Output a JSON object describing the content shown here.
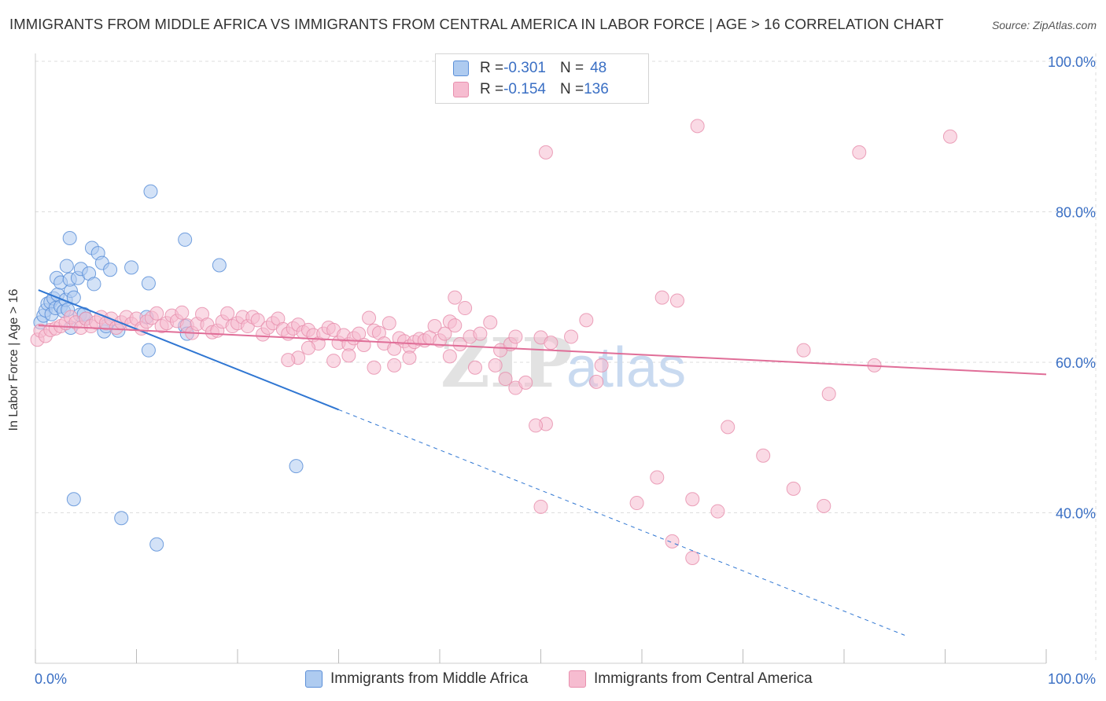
{
  "header": {
    "title": "IMMIGRANTS FROM MIDDLE AFRICA VS IMMIGRANTS FROM CENTRAL AMERICA IN LABOR FORCE | AGE > 16 CORRELATION CHART",
    "source": "Source: ZipAtlas.com"
  },
  "watermark": {
    "zip": "ZIP",
    "atlas": "atlas"
  },
  "legend": {
    "rows": [
      {
        "r_label": "R = ",
        "r_value": "-0.301",
        "n_label": "N = ",
        "n_value": "48"
      },
      {
        "r_label": "R = ",
        "r_value": "-0.154",
        "n_label": "N = ",
        "n_value": "136"
      }
    ]
  },
  "colors": {
    "blue_fill": "#aecbf0",
    "blue_stroke": "#5b8fd8",
    "blue_line": "#2f76d2",
    "pink_fill": "#f6bcd0",
    "pink_stroke": "#e890ae",
    "pink_line": "#e06e98",
    "grid": "#dddddd",
    "tick_label": "#3a6fc4"
  },
  "chart_data": {
    "type": "scatter",
    "title": "IMMIGRANTS FROM MIDDLE AFRICA VS IMMIGRANTS FROM CENTRAL AMERICA IN LABOR FORCE | AGE > 16 CORRELATION CHART",
    "xlabel": "",
    "ylabel": "In Labor Force | Age > 16",
    "xlim": [
      0,
      100
    ],
    "ylim": [
      20,
      100
    ],
    "x_tick_labels": [
      "0.0%",
      "100.0%"
    ],
    "y_ticks": [
      40,
      60,
      80,
      100
    ],
    "y_tick_labels": [
      "40.0%",
      "60.0%",
      "80.0%",
      "100.0%"
    ],
    "legend_position": "bottom",
    "series": [
      {
        "name": "Immigrants from Middle Africa",
        "r": -0.301,
        "n": 48,
        "trend": {
          "x0": 0.3,
          "y0": 69.6,
          "x1": 30,
          "y1": 53.7,
          "dash_to_x": 86
        },
        "points": [
          [
            0.5,
            65.3
          ],
          [
            0.8,
            66.2
          ],
          [
            1.0,
            66.9
          ],
          [
            1.2,
            67.8
          ],
          [
            1.5,
            68.0
          ],
          [
            1.6,
            66.4
          ],
          [
            1.8,
            68.5
          ],
          [
            2.0,
            67.2
          ],
          [
            2.2,
            69.0
          ],
          [
            2.5,
            67.4
          ],
          [
            2.8,
            66.8
          ],
          [
            3.0,
            68.3
          ],
          [
            3.2,
            67.0
          ],
          [
            3.5,
            69.5
          ],
          [
            2.1,
            71.2
          ],
          [
            2.5,
            70.6
          ],
          [
            3.4,
            71.0
          ],
          [
            3.8,
            68.6
          ],
          [
            4.2,
            71.2
          ],
          [
            4.4,
            66.3
          ],
          [
            4.8,
            66.4
          ],
          [
            5.0,
            65.8
          ],
          [
            6.8,
            64.1
          ],
          [
            8.2,
            64.2
          ],
          [
            3.5,
            64.6
          ],
          [
            3.1,
            72.8
          ],
          [
            3.4,
            76.5
          ],
          [
            4.5,
            72.4
          ],
          [
            5.3,
            71.8
          ],
          [
            5.6,
            75.2
          ],
          [
            5.8,
            70.4
          ],
          [
            6.2,
            74.5
          ],
          [
            6.6,
            73.2
          ],
          [
            7.4,
            72.3
          ],
          [
            9.5,
            72.6
          ],
          [
            11.2,
            70.5
          ],
          [
            14.8,
            76.3
          ],
          [
            18.2,
            72.9
          ],
          [
            11.2,
            61.6
          ],
          [
            11.0,
            66.0
          ],
          [
            14.8,
            64.8
          ],
          [
            15.0,
            63.8
          ],
          [
            11.4,
            82.7
          ],
          [
            25.8,
            46.2
          ],
          [
            3.8,
            41.8
          ],
          [
            8.5,
            39.3
          ],
          [
            12.0,
            35.8
          ],
          [
            7.0,
            64.8
          ]
        ]
      },
      {
        "name": "Immigrants from Central America",
        "r": -0.154,
        "n": 136,
        "trend": {
          "x0": 0.3,
          "y0": 64.9,
          "x1": 100,
          "y1": 58.4
        },
        "points": [
          [
            0.2,
            63.0
          ],
          [
            0.5,
            64.2
          ],
          [
            1.0,
            63.5
          ],
          [
            1.5,
            64.3
          ],
          [
            2.0,
            64.5
          ],
          [
            2.5,
            64.8
          ],
          [
            3.0,
            65.2
          ],
          [
            3.5,
            66.0
          ],
          [
            4.0,
            65.3
          ],
          [
            4.5,
            64.6
          ],
          [
            5.0,
            65.8
          ],
          [
            5.5,
            64.8
          ],
          [
            6.0,
            65.3
          ],
          [
            6.5,
            66.0
          ],
          [
            7.0,
            65.2
          ],
          [
            7.5,
            65.8
          ],
          [
            8.0,
            64.6
          ],
          [
            8.5,
            65.3
          ],
          [
            9.0,
            66.0
          ],
          [
            9.5,
            65.1
          ],
          [
            10.0,
            65.8
          ],
          [
            10.5,
            64.5
          ],
          [
            11.0,
            65.4
          ],
          [
            11.5,
            65.9
          ],
          [
            12.0,
            66.5
          ],
          [
            12.5,
            64.8
          ],
          [
            13.0,
            65.2
          ],
          [
            13.5,
            66.2
          ],
          [
            14.0,
            65.5
          ],
          [
            14.5,
            66.6
          ],
          [
            15.0,
            64.9
          ],
          [
            15.5,
            63.9
          ],
          [
            16.0,
            65.1
          ],
          [
            16.5,
            66.4
          ],
          [
            17.0,
            65.0
          ],
          [
            17.5,
            64.0
          ],
          [
            18.0,
            64.2
          ],
          [
            18.5,
            65.4
          ],
          [
            19.0,
            66.5
          ],
          [
            19.5,
            64.8
          ],
          [
            20.0,
            65.2
          ],
          [
            20.5,
            66.0
          ],
          [
            21.0,
            64.8
          ],
          [
            21.5,
            66.0
          ],
          [
            22.0,
            65.6
          ],
          [
            22.5,
            63.7
          ],
          [
            23.0,
            64.6
          ],
          [
            23.5,
            65.2
          ],
          [
            24.0,
            65.8
          ],
          [
            24.5,
            64.4
          ],
          [
            25.0,
            63.8
          ],
          [
            25.5,
            64.5
          ],
          [
            26.0,
            65.0
          ],
          [
            26.5,
            64.0
          ],
          [
            27.0,
            64.3
          ],
          [
            27.5,
            63.6
          ],
          [
            28.0,
            62.5
          ],
          [
            28.5,
            63.8
          ],
          [
            29.0,
            64.6
          ],
          [
            29.5,
            64.3
          ],
          [
            30.0,
            62.6
          ],
          [
            30.5,
            63.6
          ],
          [
            31.0,
            62.4
          ],
          [
            31.5,
            63.2
          ],
          [
            32.0,
            63.8
          ],
          [
            32.5,
            62.3
          ],
          [
            33.0,
            65.9
          ],
          [
            33.5,
            64.2
          ],
          [
            34.0,
            63.9
          ],
          [
            34.5,
            62.5
          ],
          [
            35.0,
            65.2
          ],
          [
            35.5,
            61.8
          ],
          [
            36.0,
            63.2
          ],
          [
            36.5,
            62.8
          ],
          [
            37.0,
            62.1
          ],
          [
            37.5,
            62.7
          ],
          [
            38.0,
            63.1
          ],
          [
            38.5,
            62.9
          ],
          [
            39.0,
            63.3
          ],
          [
            39.5,
            64.8
          ],
          [
            40.0,
            62.9
          ],
          [
            40.5,
            63.8
          ],
          [
            41.0,
            65.4
          ],
          [
            41.5,
            64.9
          ],
          [
            42.0,
            62.4
          ],
          [
            43.0,
            63.4
          ],
          [
            44.0,
            63.8
          ],
          [
            45.0,
            65.3
          ],
          [
            46.0,
            61.6
          ],
          [
            47.0,
            62.4
          ],
          [
            43.5,
            59.3
          ],
          [
            45.5,
            59.6
          ],
          [
            46.5,
            57.8
          ],
          [
            47.5,
            56.6
          ],
          [
            48.5,
            57.3
          ],
          [
            37.0,
            60.6
          ],
          [
            35.5,
            59.6
          ],
          [
            33.5,
            59.3
          ],
          [
            26.0,
            60.6
          ],
          [
            25.0,
            60.3
          ],
          [
            27.0,
            61.9
          ],
          [
            29.5,
            60.2
          ],
          [
            31.0,
            60.9
          ],
          [
            41.0,
            60.8
          ],
          [
            42.5,
            67.2
          ],
          [
            41.5,
            68.6
          ],
          [
            47.5,
            63.4
          ],
          [
            50.0,
            63.3
          ],
          [
            51.0,
            62.6
          ],
          [
            53.0,
            63.4
          ],
          [
            54.5,
            65.6
          ],
          [
            55.5,
            57.4
          ],
          [
            56.0,
            59.6
          ],
          [
            50.5,
            51.8
          ],
          [
            49.5,
            51.6
          ],
          [
            50.0,
            40.8
          ],
          [
            59.5,
            41.3
          ],
          [
            61.5,
            44.7
          ],
          [
            65.0,
            34.0
          ],
          [
            63.0,
            36.2
          ],
          [
            62.0,
            68.6
          ],
          [
            63.5,
            68.2
          ],
          [
            65.0,
            41.8
          ],
          [
            67.5,
            40.2
          ],
          [
            68.5,
            51.4
          ],
          [
            72.0,
            47.6
          ],
          [
            75.0,
            43.2
          ],
          [
            78.0,
            40.9
          ],
          [
            78.5,
            55.8
          ],
          [
            83.0,
            59.6
          ],
          [
            76.0,
            61.6
          ],
          [
            65.5,
            91.4
          ],
          [
            81.5,
            87.9
          ],
          [
            90.5,
            90.0
          ],
          [
            50.5,
            87.9
          ]
        ]
      }
    ]
  }
}
